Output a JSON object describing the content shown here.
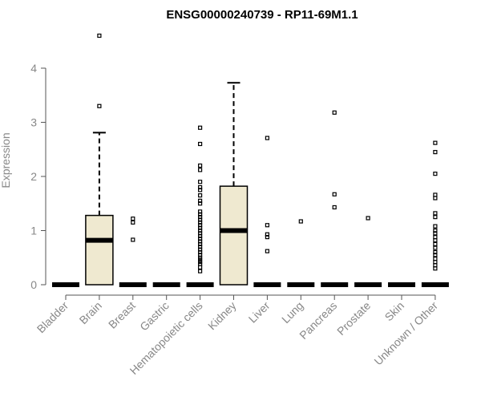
{
  "chart_data": {
    "type": "box",
    "title": "ENSG00000240739 - RP11-69M1.1",
    "ylabel": "Expression",
    "xlabel": "",
    "ylim": [
      0,
      4.6
    ],
    "yticks": [
      0,
      1,
      2,
      3,
      4
    ],
    "box_fill": "#efe9d0",
    "categories": [
      "Bladder",
      "Brain",
      "Breast",
      "Gastric",
      "Hematopoietic cells",
      "Kidney",
      "Liver",
      "Lung",
      "Pancreas",
      "Prostate",
      "Skin",
      "Unknown / Other"
    ],
    "boxes": [
      {
        "q1": 0,
        "median": 0,
        "q3": 0,
        "whisker_low": 0,
        "whisker_high": 0,
        "outliers": []
      },
      {
        "q1": 0,
        "median": 0.82,
        "q3": 1.28,
        "whisker_low": 0,
        "whisker_high": 2.81,
        "outliers": [
          3.3,
          4.6
        ]
      },
      {
        "q1": 0,
        "median": 0,
        "q3": 0,
        "whisker_low": 0,
        "whisker_high": 0,
        "outliers": [
          0.83,
          1.15,
          1.22
        ]
      },
      {
        "q1": 0,
        "median": 0,
        "q3": 0,
        "whisker_low": 0,
        "whisker_high": 0,
        "outliers": []
      },
      {
        "q1": 0,
        "median": 0,
        "q3": 0,
        "whisker_low": 0,
        "whisker_high": 0,
        "outliers": [
          0.25,
          0.32,
          0.38,
          0.42,
          0.46,
          0.5,
          0.55,
          0.6,
          0.65,
          0.7,
          0.75,
          0.8,
          0.85,
          0.9,
          0.95,
          1.0,
          1.05,
          1.1,
          1.15,
          1.2,
          1.25,
          1.3,
          1.35,
          1.5,
          1.55,
          1.65,
          1.75,
          1.8,
          1.9,
          2.12,
          2.2,
          2.6,
          2.9
        ]
      },
      {
        "q1": 0,
        "median": 1.0,
        "q3": 1.82,
        "whisker_low": 0,
        "whisker_high": 3.73,
        "outliers": []
      },
      {
        "q1": 0,
        "median": 0,
        "q3": 0,
        "whisker_low": 0,
        "whisker_high": 0,
        "outliers": [
          0.62,
          0.88,
          0.93,
          1.1,
          2.71
        ]
      },
      {
        "q1": 0,
        "median": 0,
        "q3": 0,
        "whisker_low": 0,
        "whisker_high": 0,
        "outliers": [
          1.17
        ]
      },
      {
        "q1": 0,
        "median": 0,
        "q3": 0,
        "whisker_low": 0,
        "whisker_high": 0,
        "outliers": [
          1.43,
          1.67,
          3.18
        ]
      },
      {
        "q1": 0,
        "median": 0,
        "q3": 0,
        "whisker_low": 0,
        "whisker_high": 0,
        "outliers": [
          1.23
        ]
      },
      {
        "q1": 0,
        "median": 0,
        "q3": 0,
        "whisker_low": 0,
        "whisker_high": 0,
        "outliers": []
      },
      {
        "q1": 0,
        "median": 0,
        "q3": 0,
        "whisker_low": 0,
        "whisker_high": 0,
        "outliers": [
          0.3,
          0.36,
          0.42,
          0.48,
          0.55,
          0.6,
          0.68,
          0.75,
          0.82,
          0.88,
          0.95,
          1.0,
          1.08,
          1.25,
          1.32,
          1.6,
          1.66,
          2.05,
          2.45,
          2.62
        ]
      }
    ]
  }
}
